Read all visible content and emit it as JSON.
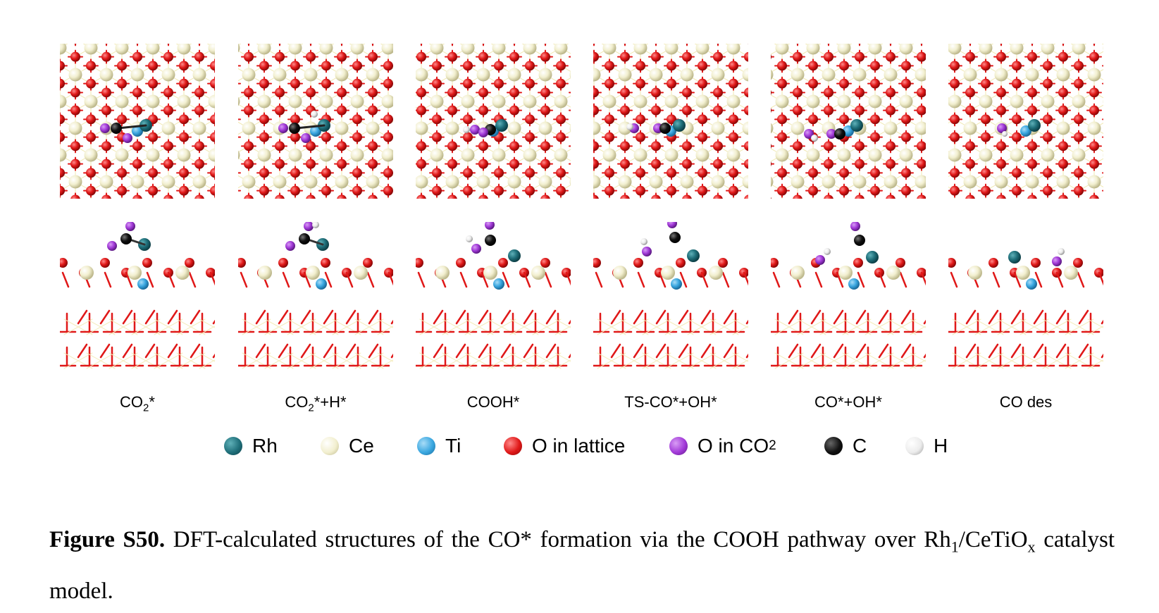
{
  "panels": [
    {
      "label_main": "CO",
      "label_sub": "2",
      "label_rest": "*"
    },
    {
      "label_main": "CO",
      "label_sub": "2",
      "label_rest": "*+H*"
    },
    {
      "label_main": "COOH*",
      "label_sub": "",
      "label_rest": ""
    },
    {
      "label_main": "TS-CO*+OH*",
      "label_sub": "",
      "label_rest": ""
    },
    {
      "label_main": "CO*+OH*",
      "label_sub": "",
      "label_rest": ""
    },
    {
      "label_main": "CO des",
      "label_sub": "",
      "label_rest": ""
    }
  ],
  "legend": [
    {
      "label": "Rh",
      "sub": "",
      "color": "#1f6f7a"
    },
    {
      "label": "Ce",
      "sub": "",
      "color": "#f2efcf"
    },
    {
      "label": "Ti",
      "sub": "",
      "color": "#3aa7e0"
    },
    {
      "label": "O in lattice",
      "sub": "",
      "color": "#e01818"
    },
    {
      "label": "O in CO",
      "sub": "2",
      "color": "#a23ad8"
    },
    {
      "label": "C",
      "sub": "",
      "color": "#111111"
    },
    {
      "label": "H",
      "sub": "",
      "color": "#f4f4f4"
    }
  ],
  "caption": {
    "figure_label": "Figure S50.",
    "text_part1": " DFT-calculated structures of the CO* formation via the COOH pathway over Rh",
    "sub1": "1",
    "text_part2": "/CeTiO",
    "sub2": "x",
    "text_part3": " catalyst model."
  }
}
